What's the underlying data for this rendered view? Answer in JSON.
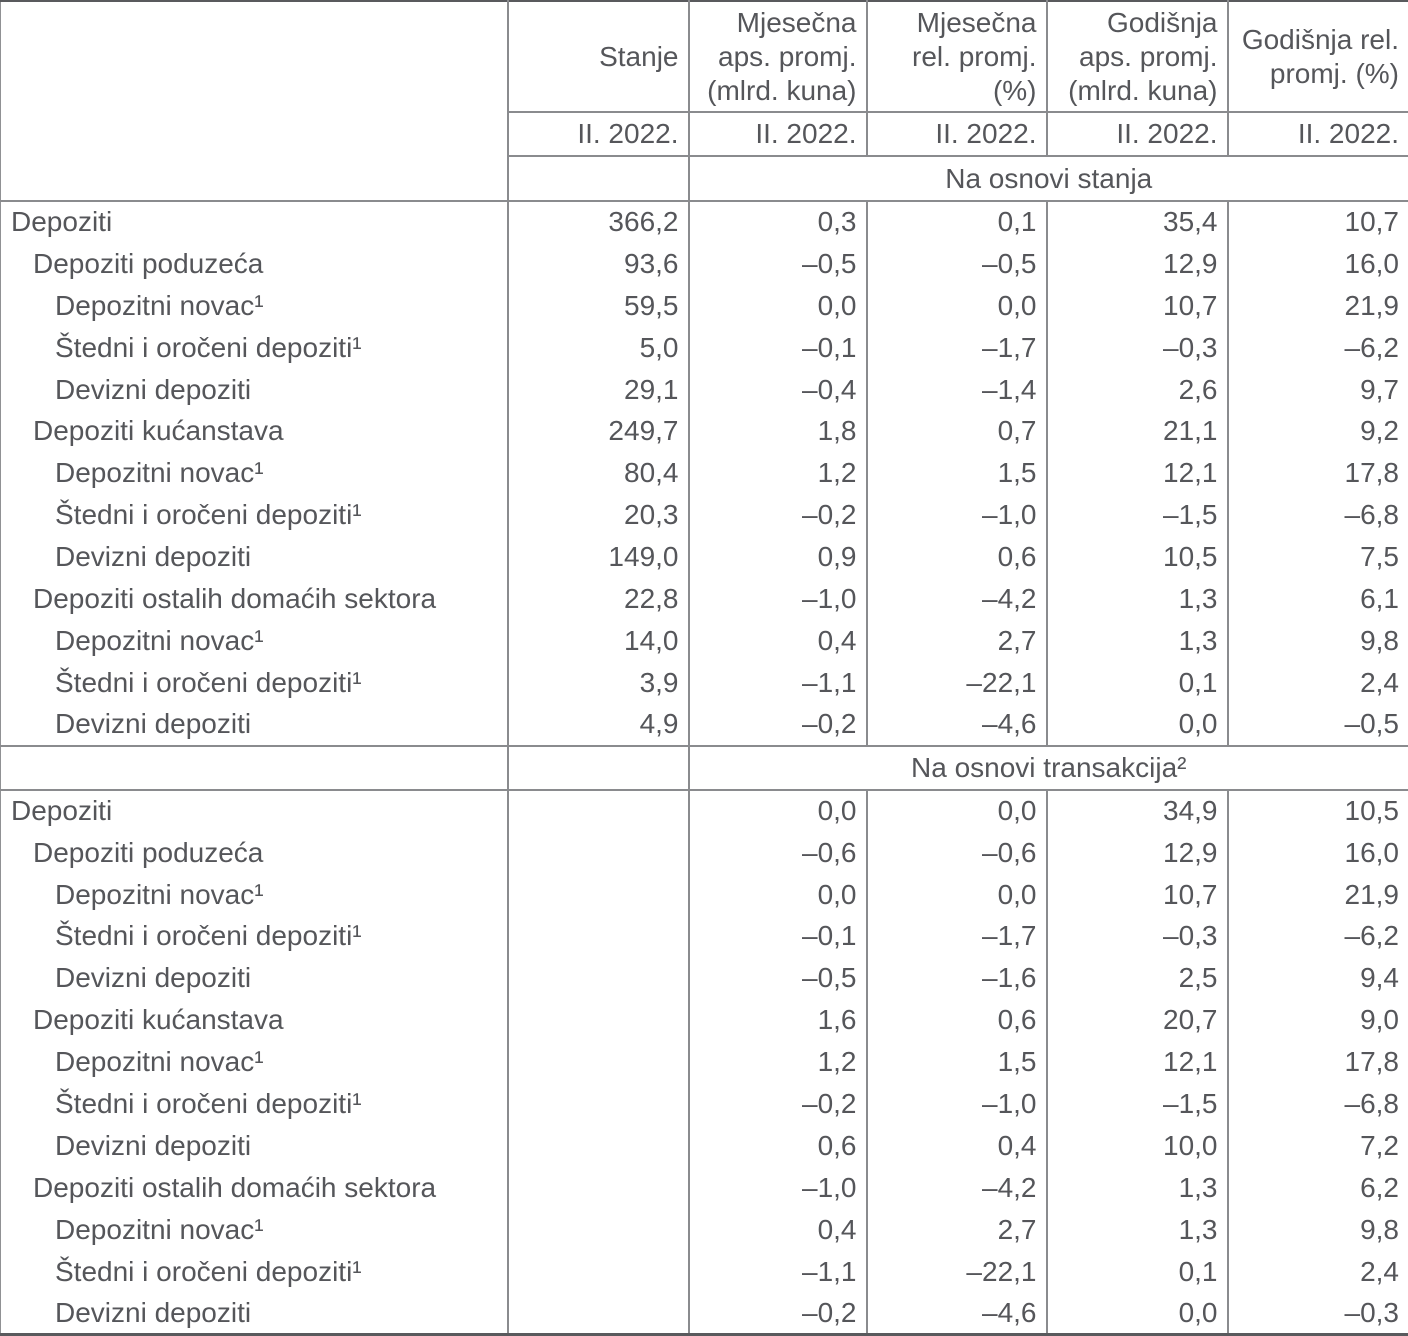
{
  "colors": {
    "text": "#55565a",
    "border_inner": "#8a8b8e",
    "border_outer": "#595a5d",
    "background": "#ffffff"
  },
  "table": {
    "header": {
      "corner": "",
      "columns": [
        {
          "title": "Stanje",
          "period": "II. 2022."
        },
        {
          "title": "Mjesečna\naps. promj.\n(mlrd. kuna)",
          "period": "II. 2022."
        },
        {
          "title": "Mjesečna\nrel. promj.\n(%)",
          "period": "II. 2022."
        },
        {
          "title": "Godišnja\naps. promj.\n(mlrd. kuna)",
          "period": "II. 2022."
        },
        {
          "title": "Godišnja rel.\npromj. (%)",
          "period": "II. 2022."
        }
      ]
    },
    "sections": [
      {
        "band": "Na osnovi stanja",
        "rows": [
          {
            "label": "Depoziti",
            "indent": 0,
            "values": [
              "366,2",
              "0,3",
              "0,1",
              "35,4",
              "10,7"
            ]
          },
          {
            "label": "Depoziti poduzeća",
            "indent": 1,
            "values": [
              "93,6",
              "–0,5",
              "–0,5",
              "12,9",
              "16,0"
            ]
          },
          {
            "label": "Depozitni novac¹",
            "indent": 2,
            "values": [
              "59,5",
              "0,0",
              "0,0",
              "10,7",
              "21,9"
            ]
          },
          {
            "label": "Štedni i oročeni depoziti¹",
            "indent": 2,
            "values": [
              "5,0",
              "–0,1",
              "–1,7",
              "–0,3",
              "–6,2"
            ]
          },
          {
            "label": "Devizni depoziti",
            "indent": 2,
            "values": [
              "29,1",
              "–0,4",
              "–1,4",
              "2,6",
              "9,7"
            ]
          },
          {
            "label": "Depoziti kućanstava",
            "indent": 1,
            "values": [
              "249,7",
              "1,8",
              "0,7",
              "21,1",
              "9,2"
            ]
          },
          {
            "label": "Depozitni novac¹",
            "indent": 2,
            "values": [
              "80,4",
              "1,2",
              "1,5",
              "12,1",
              "17,8"
            ]
          },
          {
            "label": "Štedni i oročeni depoziti¹",
            "indent": 2,
            "values": [
              "20,3",
              "–0,2",
              "–1,0",
              "–1,5",
              "–6,8"
            ]
          },
          {
            "label": "Devizni depoziti",
            "indent": 2,
            "values": [
              "149,0",
              "0,9",
              "0,6",
              "10,5",
              "7,5"
            ]
          },
          {
            "label": "Depoziti ostalih domaćih sektora",
            "indent": 1,
            "values": [
              "22,8",
              "–1,0",
              "–4,2",
              "1,3",
              "6,1"
            ]
          },
          {
            "label": "Depozitni novac¹",
            "indent": 2,
            "values": [
              "14,0",
              "0,4",
              "2,7",
              "1,3",
              "9,8"
            ]
          },
          {
            "label": "Štedni i oročeni depoziti¹",
            "indent": 2,
            "values": [
              "3,9",
              "–1,1",
              "–22,1",
              "0,1",
              "2,4"
            ]
          },
          {
            "label": "Devizni depoziti",
            "indent": 2,
            "values": [
              "4,9",
              "–0,2",
              "–4,6",
              "0,0",
              "–0,5"
            ]
          }
        ]
      },
      {
        "band": "Na osnovi transakcija²",
        "rows": [
          {
            "label": "Depoziti",
            "indent": 0,
            "values": [
              "",
              "0,0",
              "0,0",
              "34,9",
              "10,5"
            ]
          },
          {
            "label": "Depoziti poduzeća",
            "indent": 1,
            "values": [
              "",
              "–0,6",
              "–0,6",
              "12,9",
              "16,0"
            ]
          },
          {
            "label": "Depozitni novac¹",
            "indent": 2,
            "values": [
              "",
              "0,0",
              "0,0",
              "10,7",
              "21,9"
            ]
          },
          {
            "label": "Štedni i oročeni depoziti¹",
            "indent": 2,
            "values": [
              "",
              "–0,1",
              "–1,7",
              "–0,3",
              "–6,2"
            ]
          },
          {
            "label": "Devizni depoziti",
            "indent": 2,
            "values": [
              "",
              "–0,5",
              "–1,6",
              "2,5",
              "9,4"
            ]
          },
          {
            "label": "Depoziti kućanstava",
            "indent": 1,
            "values": [
              "",
              "1,6",
              "0,6",
              "20,7",
              "9,0"
            ]
          },
          {
            "label": "Depozitni novac¹",
            "indent": 2,
            "values": [
              "",
              "1,2",
              "1,5",
              "12,1",
              "17,8"
            ]
          },
          {
            "label": "Štedni i oročeni depoziti¹",
            "indent": 2,
            "values": [
              "",
              "–0,2",
              "–1,0",
              "–1,5",
              "–6,8"
            ]
          },
          {
            "label": "Devizni depoziti",
            "indent": 2,
            "values": [
              "",
              "0,6",
              "0,4",
              "10,0",
              "7,2"
            ]
          },
          {
            "label": "Depoziti ostalih domaćih sektora",
            "indent": 1,
            "values": [
              "",
              "–1,0",
              "–4,2",
              "1,3",
              "6,2"
            ]
          },
          {
            "label": "Depozitni novac¹",
            "indent": 2,
            "values": [
              "",
              "0,4",
              "2,7",
              "1,3",
              "9,8"
            ]
          },
          {
            "label": "Štedni i oročeni depoziti¹",
            "indent": 2,
            "values": [
              "",
              "–1,1",
              "–22,1",
              "0,1",
              "2,4"
            ]
          },
          {
            "label": "Devizni depoziti",
            "indent": 2,
            "values": [
              "",
              "–0,2",
              "–4,6",
              "0,0",
              "–0,3"
            ]
          }
        ]
      }
    ]
  }
}
